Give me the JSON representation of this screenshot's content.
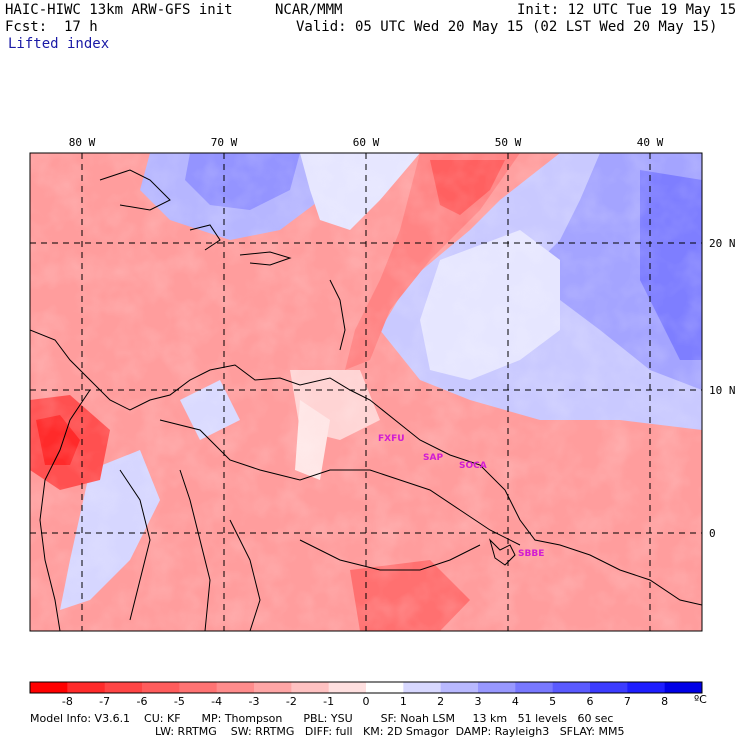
{
  "header": {
    "title_left": "HAIC-HIWC 13km ARW-GFS init",
    "org": "NCAR/MMM",
    "init": "Init: 12 UTC Tue 19 May 15",
    "fcst_label": "Fcst:",
    "fcst_value": "17 h",
    "valid": "Valid: 05 UTC Wed 20 May 15 (02 LST Wed 20 May 15)",
    "field": "Lifted index"
  },
  "map": {
    "lon_labels": [
      "80 W",
      "70 W",
      "60 W",
      "50 W",
      "40 W"
    ],
    "lat_labels": [
      "20 N",
      "10 N",
      "0"
    ],
    "stations": [
      "FXFU",
      "SAP",
      "SOCA",
      "SBBE"
    ],
    "station_color": "#d21cd2"
  },
  "colorbar": {
    "tick_labels": [
      "-8",
      "-7",
      "-6",
      "-5",
      "-4",
      "-3",
      "-2",
      "-1",
      "0",
      "1",
      "2",
      "3",
      "4",
      "5",
      "6",
      "7",
      "8"
    ],
    "unit": "ºC",
    "colors": [
      "#ff0000",
      "#ff2a2a",
      "#ff4545",
      "#ff5c5c",
      "#ff7373",
      "#ff8c8c",
      "#ffa6a6",
      "#ffc2c2",
      "#ffe0e0",
      "#ffffff",
      "#d8d8ff",
      "#b9b9ff",
      "#9898ff",
      "#7878ff",
      "#5a5aff",
      "#3c3cff",
      "#1e1eff",
      "#0000e6"
    ]
  },
  "model_info": {
    "line1": "Model Info: V3.6.1    CU: KF      MP: Thompson      PBL: YSU        SF: Noah LSM     13 km   51 levels   60 sec",
    "line2": "LW: RRTMG    SW: RRTMG   DIFF: full   KM: 2D Smagor  DAMP: Rayleigh3   SFLAY: MM5"
  }
}
